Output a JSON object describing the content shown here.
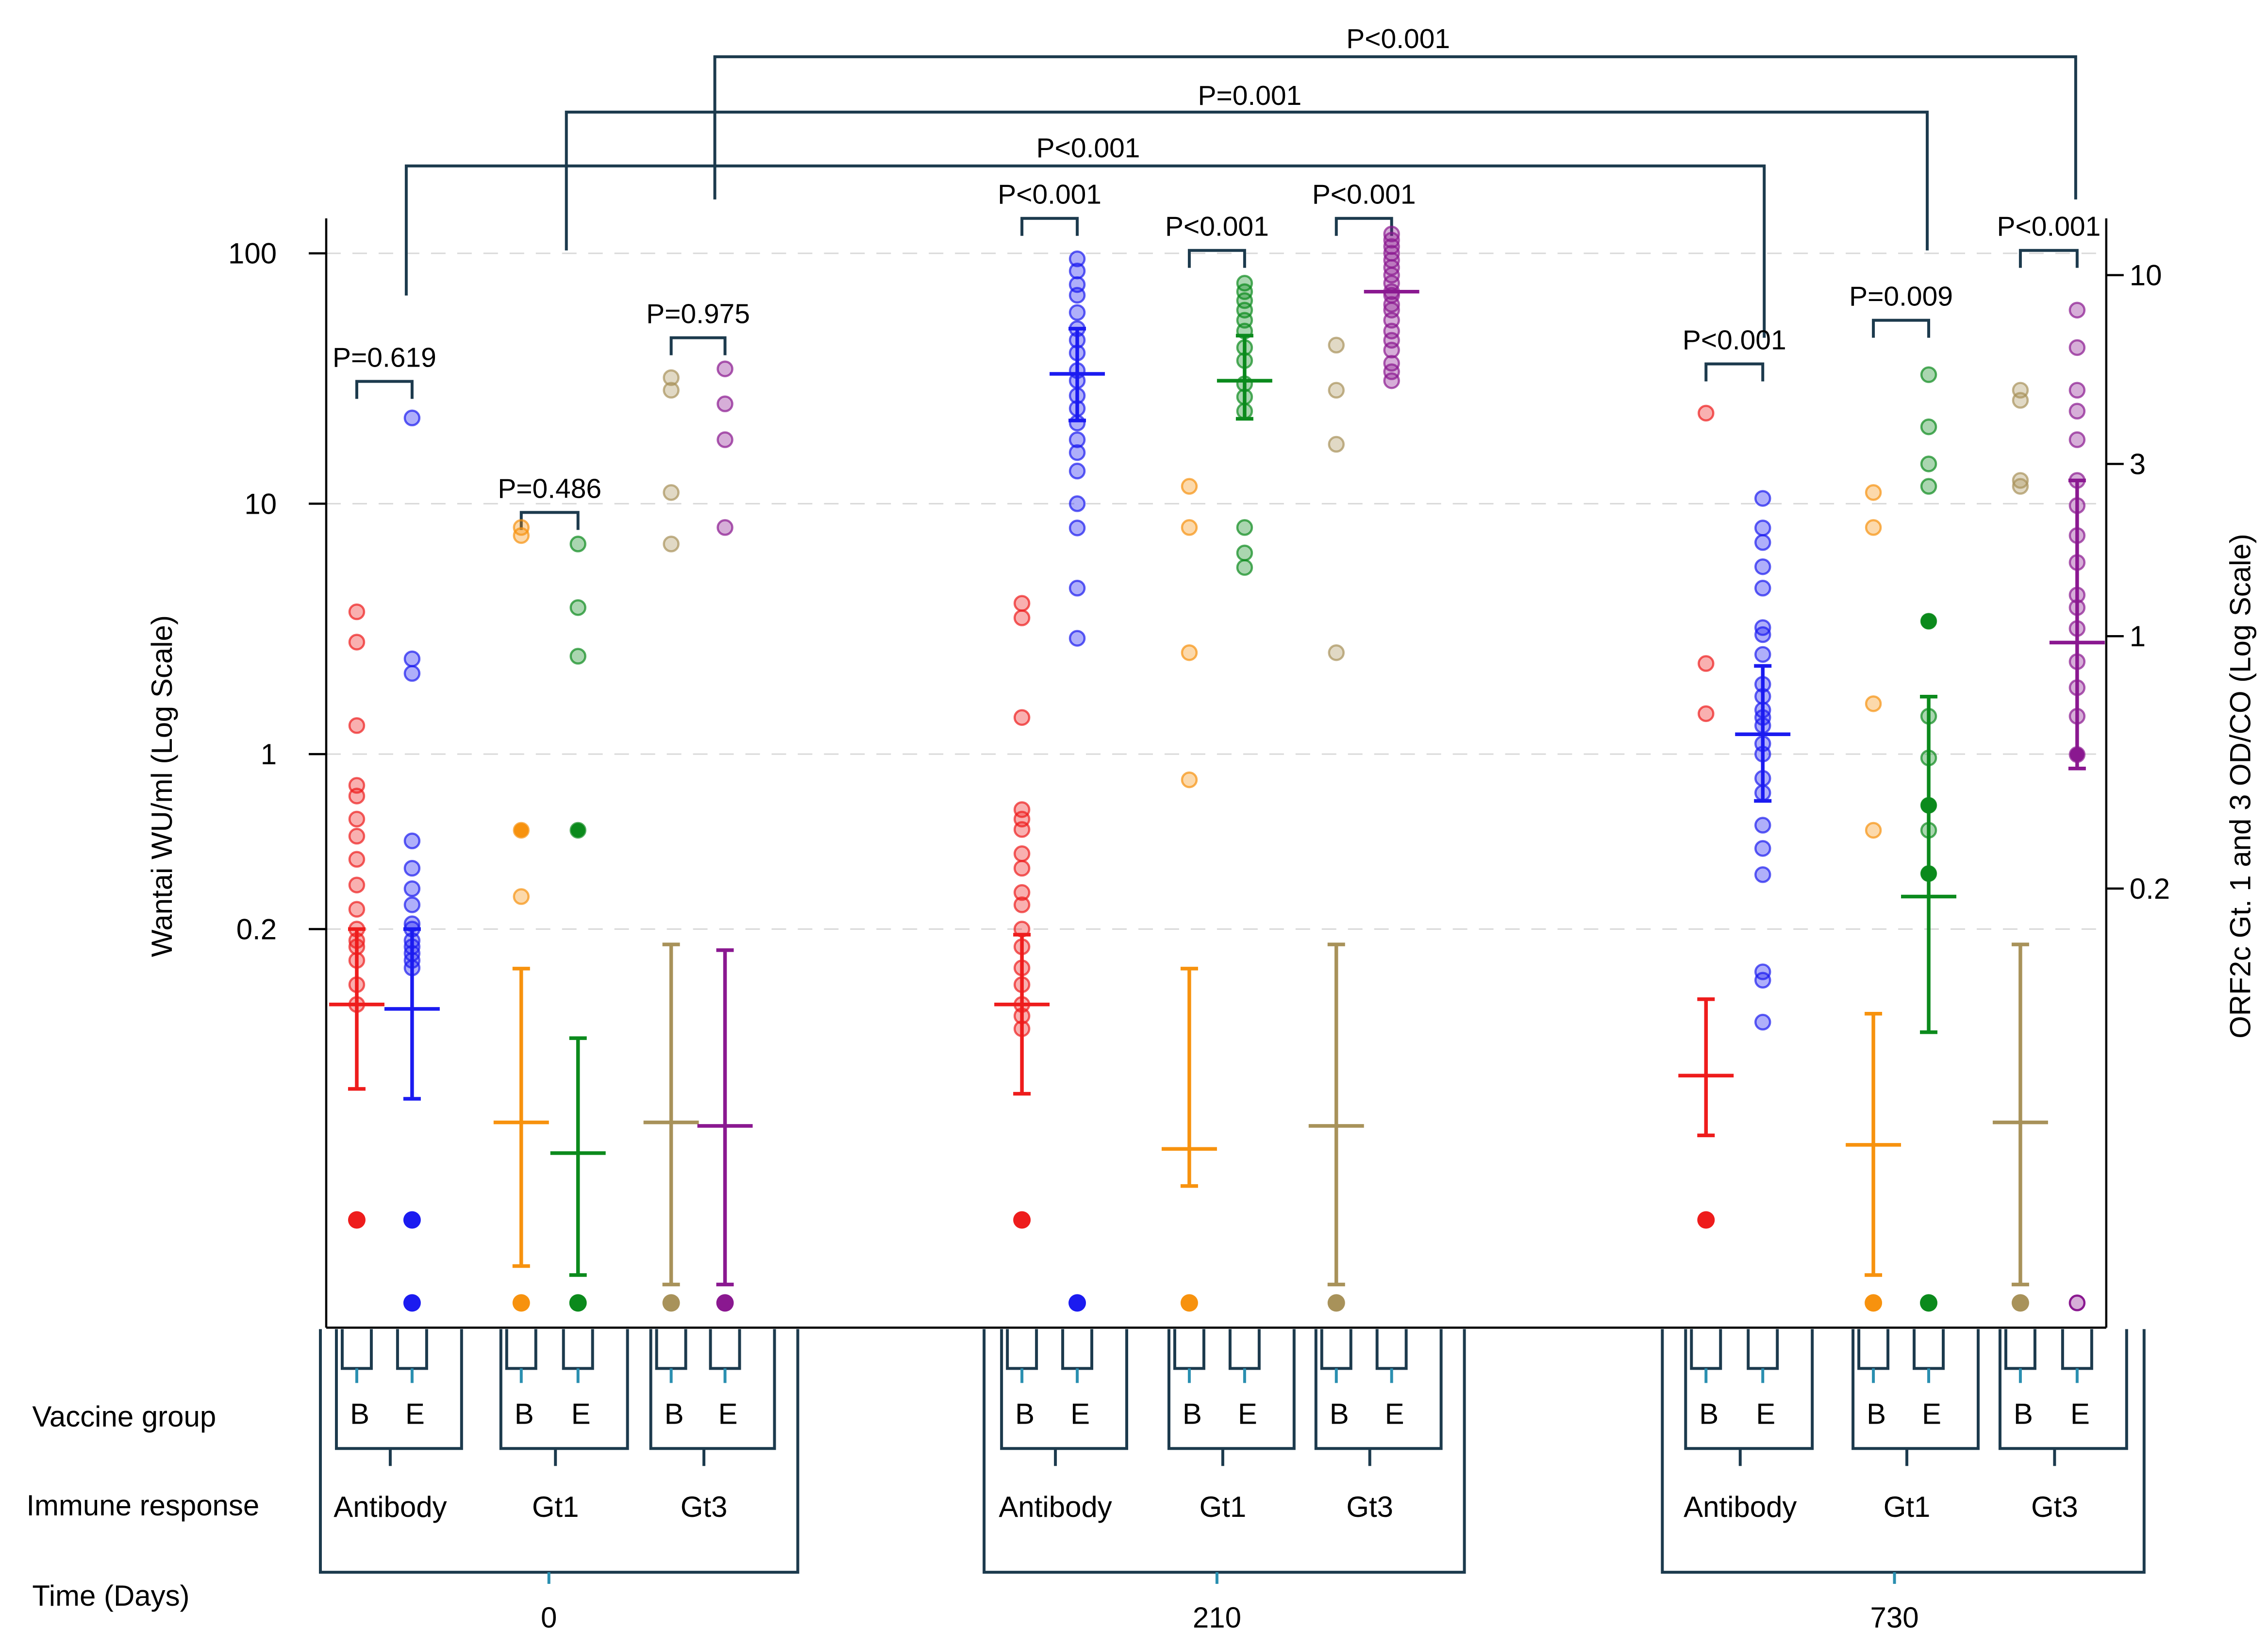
{
  "chart_data": {
    "type": "scatter",
    "title": "",
    "ylabel_left": "Wantai WU/ml (Log Scale)",
    "ylabel_right": "ORF2c  Gt. 1 and 3 OD/CO (Log Scale)",
    "left_ticks": [
      {
        "value": 100,
        "label": "100"
      },
      {
        "value": 10,
        "label": "10"
      },
      {
        "value": 1,
        "label": "1"
      },
      {
        "value": 0.2,
        "label": "0.2"
      }
    ],
    "right_ticks": [
      {
        "value": 10,
        "label": "10"
      },
      {
        "value": 3,
        "label": "3"
      },
      {
        "value": 1,
        "label": "1"
      },
      {
        "value": 0.2,
        "label": "0.2"
      }
    ],
    "legend": {
      "vaccine_group": "Vaccine group",
      "immune_response": "Immune  response",
      "time": "Time (Days)"
    },
    "times": [
      {
        "label": "0",
        "panels": [
          {
            "label": "Antibody",
            "scale": "left",
            "B": "B",
            "E": "E",
            "series": [
              {
                "name": "B",
                "color": "#ee1c1c",
                "points": [
                  3.7,
                  2.8,
                  1.3,
                  0.75,
                  0.68,
                  0.55,
                  0.47,
                  0.38,
                  0.3,
                  0.24,
                  0.2,
                  0.18,
                  0.17,
                  0.15,
                  0.12,
                  0.1
                ],
                "zeros": [
                  0.03
                ],
                "gm": 0.1,
                "ci": [
                  0.046,
                  0.2
                ]
              },
              {
                "name": "E",
                "color": "#1b1bf0",
                "points": [
                  22,
                  2.4,
                  2.1,
                  0.45,
                  0.35,
                  0.29,
                  0.25,
                  0.21,
                  0.2,
                  0.18,
                  0.17,
                  0.16,
                  0.15,
                  0.14
                ],
                "zeros": [
                  0.03,
                  0.014
                ],
                "gm": 0.096,
                "ci": [
                  0.042,
                  0.2
                ]
              }
            ]
          },
          {
            "label": "Gt1",
            "scale": "right",
            "B": "B",
            "E": "E",
            "series": [
              {
                "name": "B",
                "color": "#f7920e",
                "points": [
                  2.0,
                  1.9,
                  0.29,
                  0.19
                ],
                "gm": 0.045,
                "ci": [
                  0.018,
                  0.12
                ]
              },
              {
                "name": "E",
                "color": "#0b8a1c",
                "points": [
                  1.8,
                  1.2,
                  0.88,
                  0.29
                ],
                "gm": 0.037,
                "ci": [
                  0.017,
                  0.077
                ]
              }
            ]
          },
          {
            "label": "Gt3",
            "scale": "right",
            "B": "B",
            "E": "E",
            "series": [
              {
                "name": "B",
                "color": "#a8925a",
                "points": [
                  5.2,
                  4.8,
                  2.5,
                  1.8
                ],
                "gm": 0.045,
                "ci": [
                  0.016,
                  0.14
                ]
              },
              {
                "name": "E",
                "color": "#8a1890",
                "points": [
                  5.5,
                  4.4,
                  3.5,
                  2.0
                ],
                "gm": 0.044,
                "ci": [
                  0.016,
                  0.135
                ]
              }
            ]
          }
        ]
      },
      {
        "label": "210",
        "panels": [
          {
            "label": "Antibody",
            "scale": "left",
            "B": "B",
            "E": "E",
            "series": [
              {
                "name": "B",
                "color": "#ee1c1c",
                "points": [
                  4.0,
                  3.5,
                  1.4,
                  0.6,
                  0.55,
                  0.5,
                  0.4,
                  0.35,
                  0.28,
                  0.25,
                  0.2,
                  0.17,
                  0.14,
                  0.12,
                  0.1,
                  0.09,
                  0.08
                ],
                "zeros": [
                  0.03
                ],
                "gm": 0.1,
                "ci": [
                  0.044,
                  0.19
                ]
              },
              {
                "name": "E",
                "color": "#1b1bf0",
                "points": [
                  95,
                  85,
                  75,
                  68,
                  58,
                  50,
                  45,
                  40,
                  34,
                  31,
                  27,
                  24,
                  21,
                  18,
                  16,
                  13.5,
                  10,
                  8,
                  4.6,
                  2.9
                ],
                "gm": 33,
                "ci": [
                  21.5,
                  50
                ]
              }
            ]
          },
          {
            "label": "Gt1",
            "scale": "right",
            "B": "B",
            "E": "E",
            "series": [
              {
                "name": "B",
                "color": "#f7920e",
                "points": [
                  2.6,
                  2.0,
                  0.9,
                  0.4
                ],
                "gm": 0.038,
                "ci": [
                  0.03,
                  0.12
                ]
              },
              {
                "name": "E",
                "color": "#0b8a1c",
                "points": [
                  9.5,
                  9.0,
                  8.5,
                  8.0,
                  7.5,
                  7.0,
                  6.3,
                  5.8,
                  5.0,
                  4.6,
                  4.2,
                  2.0,
                  1.7,
                  1.55
                ],
                "gm": 5.1,
                "ci": [
                  4.0,
                  6.8
                ]
              }
            ]
          },
          {
            "label": "Gt3",
            "scale": "right",
            "B": "B",
            "E": "E",
            "series": [
              {
                "name": "B",
                "color": "#a8925a",
                "points": [
                  6.4,
                  4.8,
                  3.4,
                  0.9
                ],
                "gm": 0.044,
                "ci": [
                  0.016,
                  0.14
                ]
              },
              {
                "name": "E",
                "color": "#8a1890",
                "points": [
                  13,
                  12.5,
                  12,
                  11.5,
                  11,
                  10.5,
                  10,
                  9.5,
                  9,
                  8.8,
                  8.3,
                  8,
                  7.5,
                  7,
                  6.6,
                  6.2,
                  5.7,
                  5.4,
                  5.1
                ],
                "gm": 9.0
              }
            ]
          }
        ]
      },
      {
        "label": "730",
        "panels": [
          {
            "label": "Antibody",
            "scale": "left",
            "B": "B",
            "E": "E",
            "series": [
              {
                "name": "B",
                "color": "#ee1c1c",
                "points": [
                  23,
                  2.3,
                  1.45
                ],
                "zeros": [
                  0.03
                ],
                "gm": 0.052,
                "ci": [
                  0.03,
                  0.105
                ]
              },
              {
                "name": "E",
                "color": "#1b1bf0",
                "points": [
                  10.5,
                  8,
                  7,
                  5.6,
                  4.6,
                  3.2,
                  3,
                  2.5,
                  1.9,
                  1.7,
                  1.5,
                  1.4,
                  1.3,
                  1.1,
                  1.0,
                  0.8,
                  0.7,
                  0.52,
                  0.42,
                  0.33,
                  0.135,
                  0.125,
                  0.085
                ],
                "gm": 1.2,
                "ci": [
                  0.65,
                  2.25
                ]
              }
            ]
          },
          {
            "label": "Gt1",
            "scale": "right",
            "B": "B",
            "E": "E",
            "series": [
              {
                "name": "B",
                "color": "#f7920e",
                "points": [
                  2.5,
                  2.0,
                  0.65,
                  0.29
                ],
                "gm": 0.039,
                "ci": [
                  0.017,
                  0.09
                ]
              },
              {
                "name": "E",
                "color": "#0b8a1c",
                "points": [
                  5.3,
                  3.8,
                  3.0,
                  2.6,
                  1.1,
                  0.6,
                  0.46,
                  0.34,
                  0.29,
                  0.22
                ],
                "gm": 0.19,
                "ci": [
                  0.08,
                  0.68
                ]
              }
            ]
          },
          {
            "label": "Gt3",
            "scale": "right",
            "B": "B",
            "E": "E",
            "series": [
              {
                "name": "B",
                "color": "#a8925a",
                "points": [
                  4.8,
                  4.5,
                  2.7,
                  2.6
                ],
                "gm": 0.045,
                "ci": [
                  0.016,
                  0.14
                ]
              },
              {
                "name": "E",
                "color": "#8a1890",
                "points": [
                  8,
                  6.3,
                  4.8,
                  4.2,
                  3.5,
                  2.7,
                  2.3,
                  1.9,
                  1.6,
                  1.3,
                  1.2,
                  1.05,
                  0.85,
                  0.72,
                  0.6,
                  0.47
                ],
                "gm": 0.96,
                "ci": [
                  0.43,
                  2.7
                ]
              }
            ]
          }
        ]
      }
    ],
    "pvalues_within": [
      "P=0.619",
      "P=0.486",
      "P=0.975",
      "P<0.001",
      "P<0.001",
      "P<0.001",
      "P<0.001",
      "P=0.009",
      "P<0.001"
    ],
    "pvalues_between": [
      {
        "label": "P<0.001",
        "from": "Antibody 0",
        "to": "Antibody 730"
      },
      {
        "label": "P=0.001",
        "from": "Gt1 0",
        "to": "Gt1 730"
      },
      {
        "label": "P<0.001",
        "from": "Gt3 0",
        "to": "Gt3 730"
      }
    ]
  }
}
